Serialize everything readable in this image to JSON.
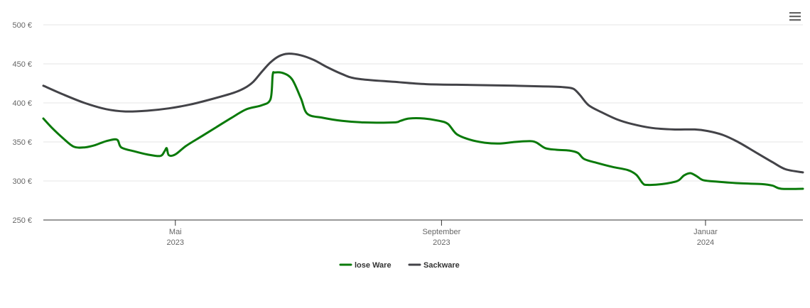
{
  "menu": {
    "icon": "hamburger-menu-icon"
  },
  "chart_data": {
    "type": "line",
    "title": "",
    "xlabel": "",
    "ylabel": "",
    "x_range": [
      "2023-03-01",
      "2024-02-15"
    ],
    "ylim": [
      250,
      500
    ],
    "y_ticks": [
      {
        "value": 250,
        "label": "250 €"
      },
      {
        "value": 300,
        "label": "300 €"
      },
      {
        "value": 350,
        "label": "350 €"
      },
      {
        "value": 400,
        "label": "400 €"
      },
      {
        "value": 450,
        "label": "450 €"
      },
      {
        "value": 500,
        "label": "500 €"
      }
    ],
    "x_ticks": [
      {
        "date": "2023-05-01",
        "month": "Mai",
        "year": "2023"
      },
      {
        "date": "2023-09-01",
        "month": "September",
        "year": "2023"
      },
      {
        "date": "2024-01-01",
        "month": "Januar",
        "year": "2024"
      }
    ],
    "grid": true,
    "legend_position": "bottom-center",
    "series": [
      {
        "name": "lose Ware",
        "color": "#0a7a0a",
        "points": [
          [
            "2023-03-01",
            380
          ],
          [
            "2023-03-05",
            368
          ],
          [
            "2023-03-10",
            355
          ],
          [
            "2023-03-15",
            344
          ],
          [
            "2023-03-20",
            343
          ],
          [
            "2023-03-25",
            346
          ],
          [
            "2023-03-30",
            351
          ],
          [
            "2023-04-04",
            353
          ],
          [
            "2023-04-06",
            343
          ],
          [
            "2023-04-12",
            338
          ],
          [
            "2023-04-18",
            334
          ],
          [
            "2023-04-24",
            332
          ],
          [
            "2023-04-26",
            338
          ],
          [
            "2023-04-27",
            342
          ],
          [
            "2023-04-28",
            333
          ],
          [
            "2023-05-01",
            334
          ],
          [
            "2023-05-06",
            345
          ],
          [
            "2023-05-13",
            357
          ],
          [
            "2023-05-20",
            369
          ],
          [
            "2023-05-27",
            381
          ],
          [
            "2023-06-03",
            392
          ],
          [
            "2023-06-10",
            397
          ],
          [
            "2023-06-14",
            405
          ],
          [
            "2023-06-15",
            436
          ],
          [
            "2023-06-16",
            439
          ],
          [
            "2023-06-20",
            438
          ],
          [
            "2023-06-24",
            430
          ],
          [
            "2023-06-28",
            406
          ],
          [
            "2023-07-01",
            386
          ],
          [
            "2023-07-08",
            381
          ],
          [
            "2023-07-17",
            377
          ],
          [
            "2023-07-27",
            375
          ],
          [
            "2023-08-10",
            375
          ],
          [
            "2023-08-13",
            377
          ],
          [
            "2023-08-17",
            380
          ],
          [
            "2023-08-24",
            380
          ],
          [
            "2023-08-31",
            377
          ],
          [
            "2023-09-04",
            373
          ],
          [
            "2023-09-08",
            360
          ],
          [
            "2023-09-14",
            353
          ],
          [
            "2023-09-21",
            349
          ],
          [
            "2023-09-28",
            348
          ],
          [
            "2023-10-05",
            350
          ],
          [
            "2023-10-12",
            351
          ],
          [
            "2023-10-15",
            349
          ],
          [
            "2023-10-19",
            342
          ],
          [
            "2023-10-24",
            340
          ],
          [
            "2023-10-30",
            339
          ],
          [
            "2023-11-03",
            336
          ],
          [
            "2023-11-06",
            328
          ],
          [
            "2023-11-12",
            323
          ],
          [
            "2023-11-19",
            318
          ],
          [
            "2023-11-26",
            314
          ],
          [
            "2023-11-30",
            308
          ],
          [
            "2023-12-03",
            297
          ],
          [
            "2023-12-05",
            295
          ],
          [
            "2023-12-12",
            296
          ],
          [
            "2023-12-19",
            300
          ],
          [
            "2023-12-22",
            307
          ],
          [
            "2023-12-25",
            310
          ],
          [
            "2023-12-28",
            306
          ],
          [
            "2023-12-31",
            301
          ],
          [
            "2024-01-07",
            299
          ],
          [
            "2024-01-17",
            297
          ],
          [
            "2024-01-27",
            296
          ],
          [
            "2024-02-01",
            294
          ],
          [
            "2024-02-05",
            290
          ],
          [
            "2024-02-15",
            290
          ]
        ]
      },
      {
        "name": "Sackware",
        "color": "#434348",
        "points": [
          [
            "2023-03-01",
            422
          ],
          [
            "2023-03-10",
            411
          ],
          [
            "2023-03-20",
            400
          ],
          [
            "2023-03-30",
            392
          ],
          [
            "2023-04-08",
            389
          ],
          [
            "2023-04-18",
            390
          ],
          [
            "2023-04-28",
            393
          ],
          [
            "2023-05-08",
            398
          ],
          [
            "2023-05-18",
            405
          ],
          [
            "2023-05-28",
            413
          ],
          [
            "2023-06-02",
            419
          ],
          [
            "2023-06-06",
            427
          ],
          [
            "2023-06-10",
            440
          ],
          [
            "2023-06-14",
            452
          ],
          [
            "2023-06-18",
            460
          ],
          [
            "2023-06-22",
            463
          ],
          [
            "2023-06-28",
            461
          ],
          [
            "2023-07-04",
            455
          ],
          [
            "2023-07-10",
            446
          ],
          [
            "2023-07-17",
            437
          ],
          [
            "2023-07-24",
            431
          ],
          [
            "2023-08-10",
            427
          ],
          [
            "2023-08-25",
            424
          ],
          [
            "2023-09-15",
            423
          ],
          [
            "2023-10-05",
            422
          ],
          [
            "2023-10-20",
            421
          ],
          [
            "2023-10-28",
            420
          ],
          [
            "2023-11-01",
            418
          ],
          [
            "2023-11-04",
            410
          ],
          [
            "2023-11-08",
            397
          ],
          [
            "2023-11-14",
            388
          ],
          [
            "2023-11-21",
            379
          ],
          [
            "2023-11-28",
            373
          ],
          [
            "2023-12-07",
            368
          ],
          [
            "2023-12-17",
            366
          ],
          [
            "2023-12-27",
            366
          ],
          [
            "2024-01-02",
            364
          ],
          [
            "2024-01-09",
            359
          ],
          [
            "2024-01-16",
            350
          ],
          [
            "2024-01-24",
            337
          ],
          [
            "2024-02-01",
            324
          ],
          [
            "2024-02-07",
            315
          ],
          [
            "2024-02-15",
            311
          ]
        ]
      }
    ]
  }
}
